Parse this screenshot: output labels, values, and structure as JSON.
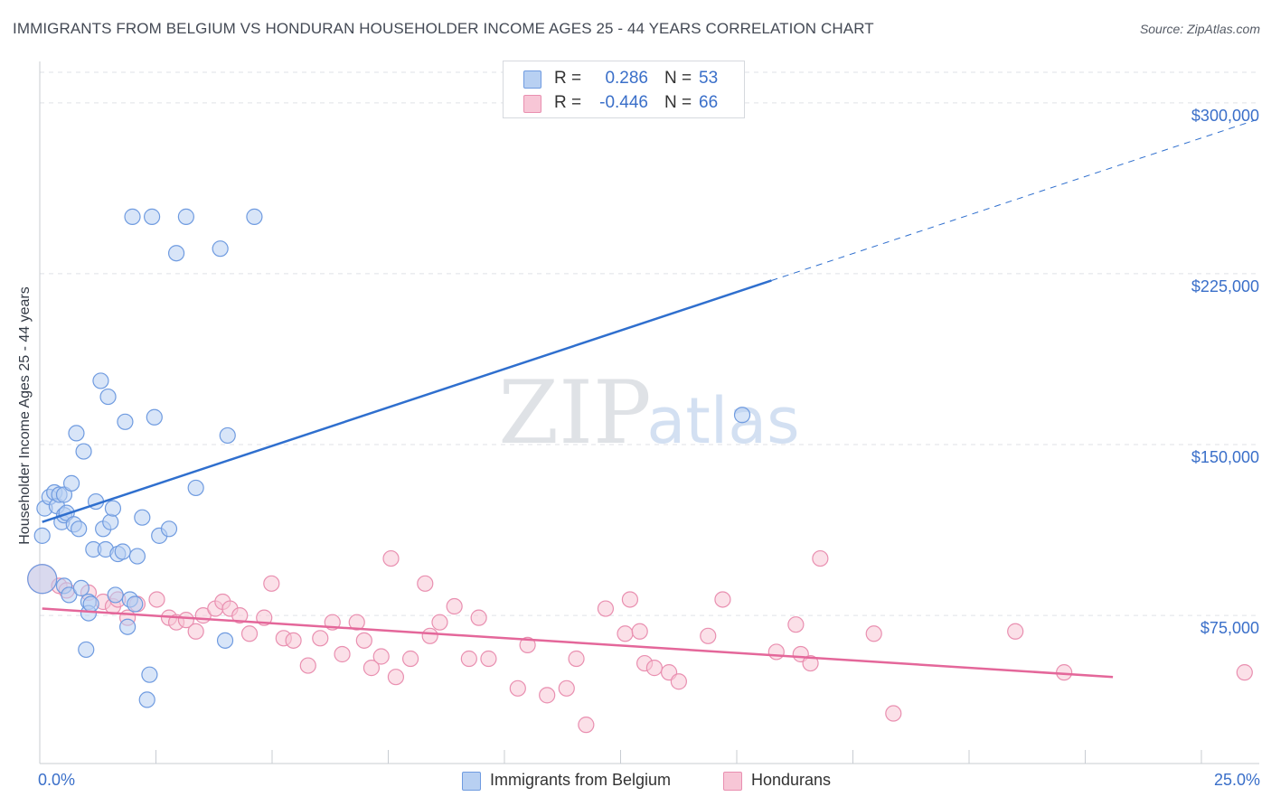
{
  "header": {
    "title": "IMMIGRANTS FROM BELGIUM VS HONDURAN HOUSEHOLDER INCOME AGES 25 - 44 YEARS CORRELATION CHART",
    "source": "Source: ZipAtlas.com"
  },
  "watermark": {
    "zip": "ZIP",
    "atlas": "atlas"
  },
  "colors": {
    "belgium_fill": "#b8d0f2",
    "belgium_stroke": "#6f9be0",
    "belgium_line": "#2f6fce",
    "honduran_fill": "#f7c6d6",
    "honduran_stroke": "#e98fb0",
    "honduran_line": "#e4679a",
    "axis_text": "#3a6fc9",
    "grid": "#dfe2e7"
  },
  "legend_top": {
    "rows": [
      {
        "series": "belgium",
        "r_label": "R =",
        "r_value": "0.286",
        "n_label": "N =",
        "n_value": "53"
      },
      {
        "series": "honduran",
        "r_label": "R =",
        "r_value": "-0.446",
        "n_label": "N =",
        "n_value": "66"
      }
    ]
  },
  "legend_bottom": [
    {
      "series": "belgium",
      "label": "Immigrants from Belgium"
    },
    {
      "series": "honduran",
      "label": "Hondurans"
    }
  ],
  "chart_data": {
    "type": "scatter",
    "title": "IMMIGRANTS FROM BELGIUM VS HONDURAN HOUSEHOLDER INCOME AGES 25 - 44 YEARS CORRELATION CHART",
    "xlabel": "",
    "ylabel": "Householder Income Ages 25 - 44 years",
    "x_unit": "%",
    "xlim": [
      0,
      25
    ],
    "ylim": [
      10000,
      315000
    ],
    "x_tick_labels": [
      "0.0%",
      "25.0%"
    ],
    "y_ticks": [
      75000,
      150000,
      225000,
      300000
    ],
    "y_tick_labels": [
      "$75,000",
      "$150,000",
      "$225,000",
      "$300,000"
    ],
    "grid": "horizontal dashed",
    "legend_placement": "top-center and bottom",
    "series": [
      {
        "name": "Immigrants from Belgium",
        "key": "belgium",
        "r": 0.286,
        "n": 53,
        "trend": {
          "x": [
            0.05,
            15.0
          ],
          "y": [
            116000,
            222000
          ],
          "dashed_to": [
            25.0,
            293000
          ]
        },
        "points": [
          [
            0.05,
            91000
          ],
          [
            0.05,
            110000
          ],
          [
            0.1,
            122000
          ],
          [
            0.2,
            127000
          ],
          [
            0.3,
            129000
          ],
          [
            0.35,
            123000
          ],
          [
            0.4,
            128000
          ],
          [
            0.45,
            116000
          ],
          [
            0.5,
            119000
          ],
          [
            0.5,
            88000
          ],
          [
            0.5,
            128000
          ],
          [
            0.55,
            120000
          ],
          [
            0.6,
            84000
          ],
          [
            0.65,
            133000
          ],
          [
            0.7,
            115000
          ],
          [
            0.75,
            155000
          ],
          [
            0.8,
            113000
          ],
          [
            0.85,
            87000
          ],
          [
            0.9,
            147000
          ],
          [
            0.95,
            60000
          ],
          [
            1.0,
            81000
          ],
          [
            1.0,
            76000
          ],
          [
            1.05,
            80000
          ],
          [
            1.1,
            104000
          ],
          [
            1.15,
            125000
          ],
          [
            1.25,
            178000
          ],
          [
            1.3,
            113000
          ],
          [
            1.35,
            104000
          ],
          [
            1.4,
            171000
          ],
          [
            1.45,
            116000
          ],
          [
            1.5,
            122000
          ],
          [
            1.55,
            84000
          ],
          [
            1.6,
            102000
          ],
          [
            1.7,
            103000
          ],
          [
            1.75,
            160000
          ],
          [
            1.8,
            70000
          ],
          [
            1.85,
            82000
          ],
          [
            1.9,
            250000
          ],
          [
            1.95,
            80000
          ],
          [
            2.0,
            101000
          ],
          [
            2.1,
            118000
          ],
          [
            2.2,
            38000
          ],
          [
            2.3,
            250000
          ],
          [
            2.35,
            162000
          ],
          [
            2.25,
            49000
          ],
          [
            2.45,
            110000
          ],
          [
            2.65,
            113000
          ],
          [
            2.8,
            234000
          ],
          [
            3.0,
            250000
          ],
          [
            3.2,
            131000
          ],
          [
            3.7,
            236000
          ],
          [
            3.8,
            64000
          ],
          [
            3.85,
            154000
          ],
          [
            4.4,
            250000
          ],
          [
            14.4,
            163000
          ]
        ]
      },
      {
        "name": "Hondurans",
        "key": "honduran",
        "r": -0.446,
        "n": 66,
        "trend": {
          "x": [
            0.05,
            22.0
          ],
          "y": [
            78000,
            48000
          ]
        },
        "points": [
          [
            0.05,
            91000
          ],
          [
            0.4,
            88000
          ],
          [
            0.55,
            86000
          ],
          [
            1.0,
            85000
          ],
          [
            1.3,
            81000
          ],
          [
            1.5,
            79000
          ],
          [
            1.6,
            82000
          ],
          [
            1.8,
            74000
          ],
          [
            2.0,
            80000
          ],
          [
            2.4,
            82000
          ],
          [
            2.65,
            74000
          ],
          [
            2.8,
            72000
          ],
          [
            3.0,
            73000
          ],
          [
            3.2,
            68000
          ],
          [
            3.35,
            75000
          ],
          [
            3.6,
            78000
          ],
          [
            3.75,
            81000
          ],
          [
            3.9,
            78000
          ],
          [
            4.1,
            75000
          ],
          [
            4.3,
            67000
          ],
          [
            4.6,
            74000
          ],
          [
            4.75,
            89000
          ],
          [
            5.0,
            65000
          ],
          [
            5.2,
            64000
          ],
          [
            5.5,
            53000
          ],
          [
            5.75,
            65000
          ],
          [
            6.0,
            72000
          ],
          [
            6.2,
            58000
          ],
          [
            6.5,
            72000
          ],
          [
            6.65,
            64000
          ],
          [
            6.8,
            52000
          ],
          [
            7.0,
            57000
          ],
          [
            7.2,
            100000
          ],
          [
            7.3,
            48000
          ],
          [
            7.6,
            56000
          ],
          [
            7.9,
            89000
          ],
          [
            8.0,
            66000
          ],
          [
            8.2,
            72000
          ],
          [
            8.5,
            79000
          ],
          [
            8.8,
            56000
          ],
          [
            9.0,
            74000
          ],
          [
            9.2,
            56000
          ],
          [
            9.8,
            43000
          ],
          [
            10.0,
            62000
          ],
          [
            10.4,
            40000
          ],
          [
            10.8,
            43000
          ],
          [
            11.0,
            56000
          ],
          [
            11.2,
            27000
          ],
          [
            11.6,
            78000
          ],
          [
            12.0,
            67000
          ],
          [
            12.1,
            82000
          ],
          [
            12.3,
            68000
          ],
          [
            12.4,
            54000
          ],
          [
            12.6,
            52000
          ],
          [
            12.9,
            50000
          ],
          [
            13.1,
            46000
          ],
          [
            13.7,
            66000
          ],
          [
            14.0,
            82000
          ],
          [
            15.1,
            59000
          ],
          [
            15.5,
            71000
          ],
          [
            15.6,
            58000
          ],
          [
            15.8,
            54000
          ],
          [
            16.0,
            100000
          ],
          [
            17.1,
            67000
          ],
          [
            17.5,
            32000
          ],
          [
            20.0,
            68000
          ],
          [
            21.0,
            50000
          ],
          [
            24.7,
            50000
          ]
        ]
      }
    ]
  }
}
